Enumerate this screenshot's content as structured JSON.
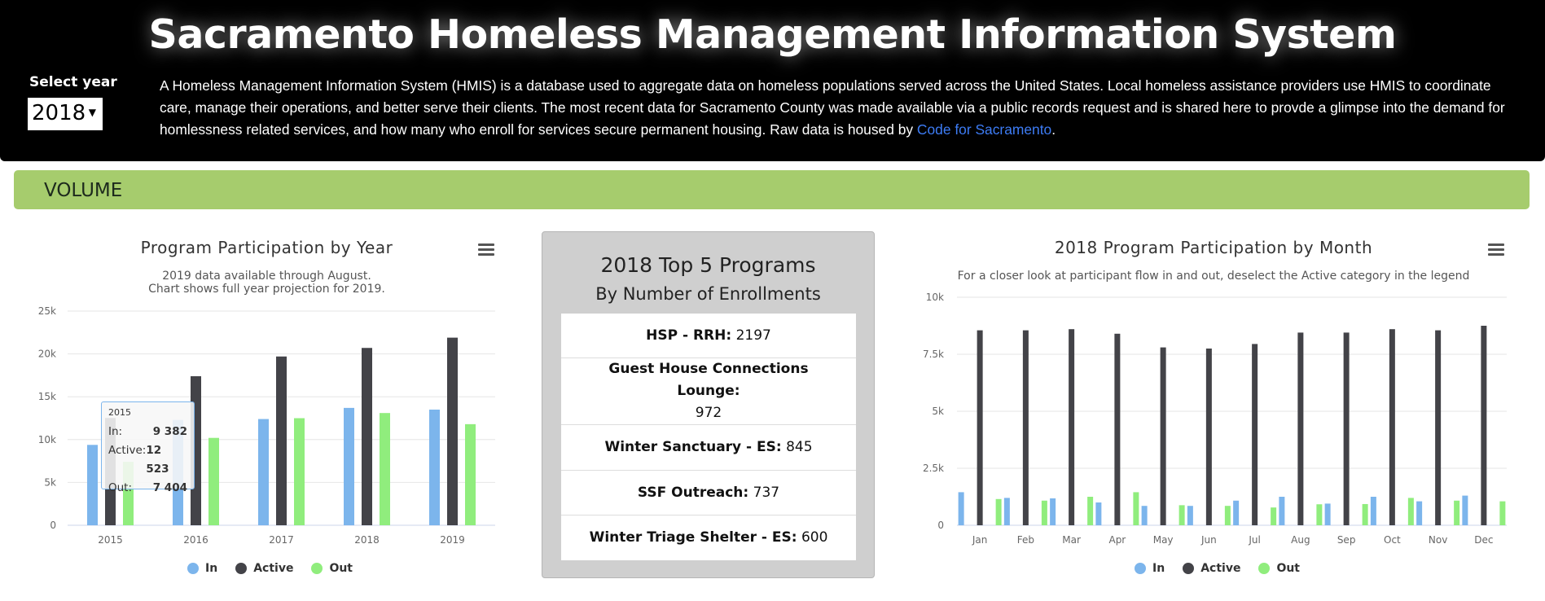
{
  "header": {
    "title": "Sacramento Homeless Management Information System",
    "year_label": "Select year",
    "year_value": "2018",
    "description": "A Homeless Management Information System (HMIS) is a database used to aggregate data on homeless populations served across the United States. Local homeless assistance providers use HMIS to coordinate care, manage their operations, and better serve their clients. The most recent data for Sacramento County was made available via a public records request and is shared here to provde a glimpse into the demand for homlessness related services, and how many who enroll for services secure permanent housing. Raw data is housed by ",
    "link_text": "Code for Sacramento",
    "description_end": "."
  },
  "section": {
    "label": "VOLUME"
  },
  "colors": {
    "in": "#7cb5ec",
    "active": "#434348",
    "out": "#90ed7d",
    "section": "#a6cc6d"
  },
  "top_programs": {
    "title": "2018 Top 5 Programs",
    "subtitle": "By Number of Enrollments",
    "items": [
      {
        "name": "HSP - RRH:",
        "value": "2197"
      },
      {
        "name": "Guest House Connections Lounge:",
        "value": "972"
      },
      {
        "name": "Winter Sanctuary - ES:",
        "value": "845"
      },
      {
        "name": "SSF Outreach:",
        "value": "737"
      },
      {
        "name": "Winter Triage Shelter - ES:",
        "value": "600"
      }
    ]
  },
  "tooltip": {
    "header": "2015",
    "rows": [
      {
        "label": "In:",
        "value": "9 382"
      },
      {
        "label": "Active:",
        "value": "12 523"
      },
      {
        "label": "Out:",
        "value": "7 404"
      }
    ]
  },
  "chart_data": [
    {
      "type": "bar",
      "title": "Program Participation by Year",
      "subtitle_lines": [
        "2019 data available through August.",
        "Chart shows full year projection for 2019."
      ],
      "categories": [
        "2015",
        "2016",
        "2017",
        "2018",
        "2019"
      ],
      "yticks": [
        "0",
        "5k",
        "10k",
        "15k",
        "20k",
        "25k"
      ],
      "ylim": [
        0,
        25000
      ],
      "grid": true,
      "legend": "bottom-center",
      "series": [
        {
          "name": "In",
          "values": [
            9382,
            12300,
            12400,
            13700,
            13500
          ]
        },
        {
          "name": "Active",
          "values": [
            12523,
            17400,
            19700,
            20700,
            21900
          ]
        },
        {
          "name": "Out",
          "values": [
            7404,
            10200,
            12500,
            13100,
            11800
          ]
        }
      ]
    },
    {
      "type": "bar",
      "title": "2018 Program Participation by Month",
      "subtitle_lines": [
        "For a closer look at participant flow in and out, deselect the Active category in the legend"
      ],
      "categories": [
        "Jan",
        "Feb",
        "Mar",
        "Apr",
        "May",
        "Jun",
        "Jul",
        "Aug",
        "Sep",
        "Oct",
        "Nov",
        "Dec"
      ],
      "yticks": [
        "0",
        "2.5k",
        "5k",
        "7.5k",
        "10k"
      ],
      "ylim": [
        0,
        10000
      ],
      "grid": true,
      "legend": "bottom-center",
      "series": [
        {
          "name": "In",
          "values": [
            1450,
            1200,
            1180,
            1000,
            850,
            850,
            1080,
            1250,
            950,
            1250,
            1050,
            1300
          ]
        },
        {
          "name": "Active",
          "values": [
            8550,
            8550,
            8600,
            8400,
            7800,
            7750,
            7950,
            8450,
            8450,
            8600,
            8550,
            8750
          ]
        },
        {
          "name": "Out",
          "values": [
            1150,
            1080,
            1250,
            1450,
            880,
            850,
            780,
            920,
            930,
            1200,
            1080,
            1050
          ]
        }
      ]
    }
  ]
}
